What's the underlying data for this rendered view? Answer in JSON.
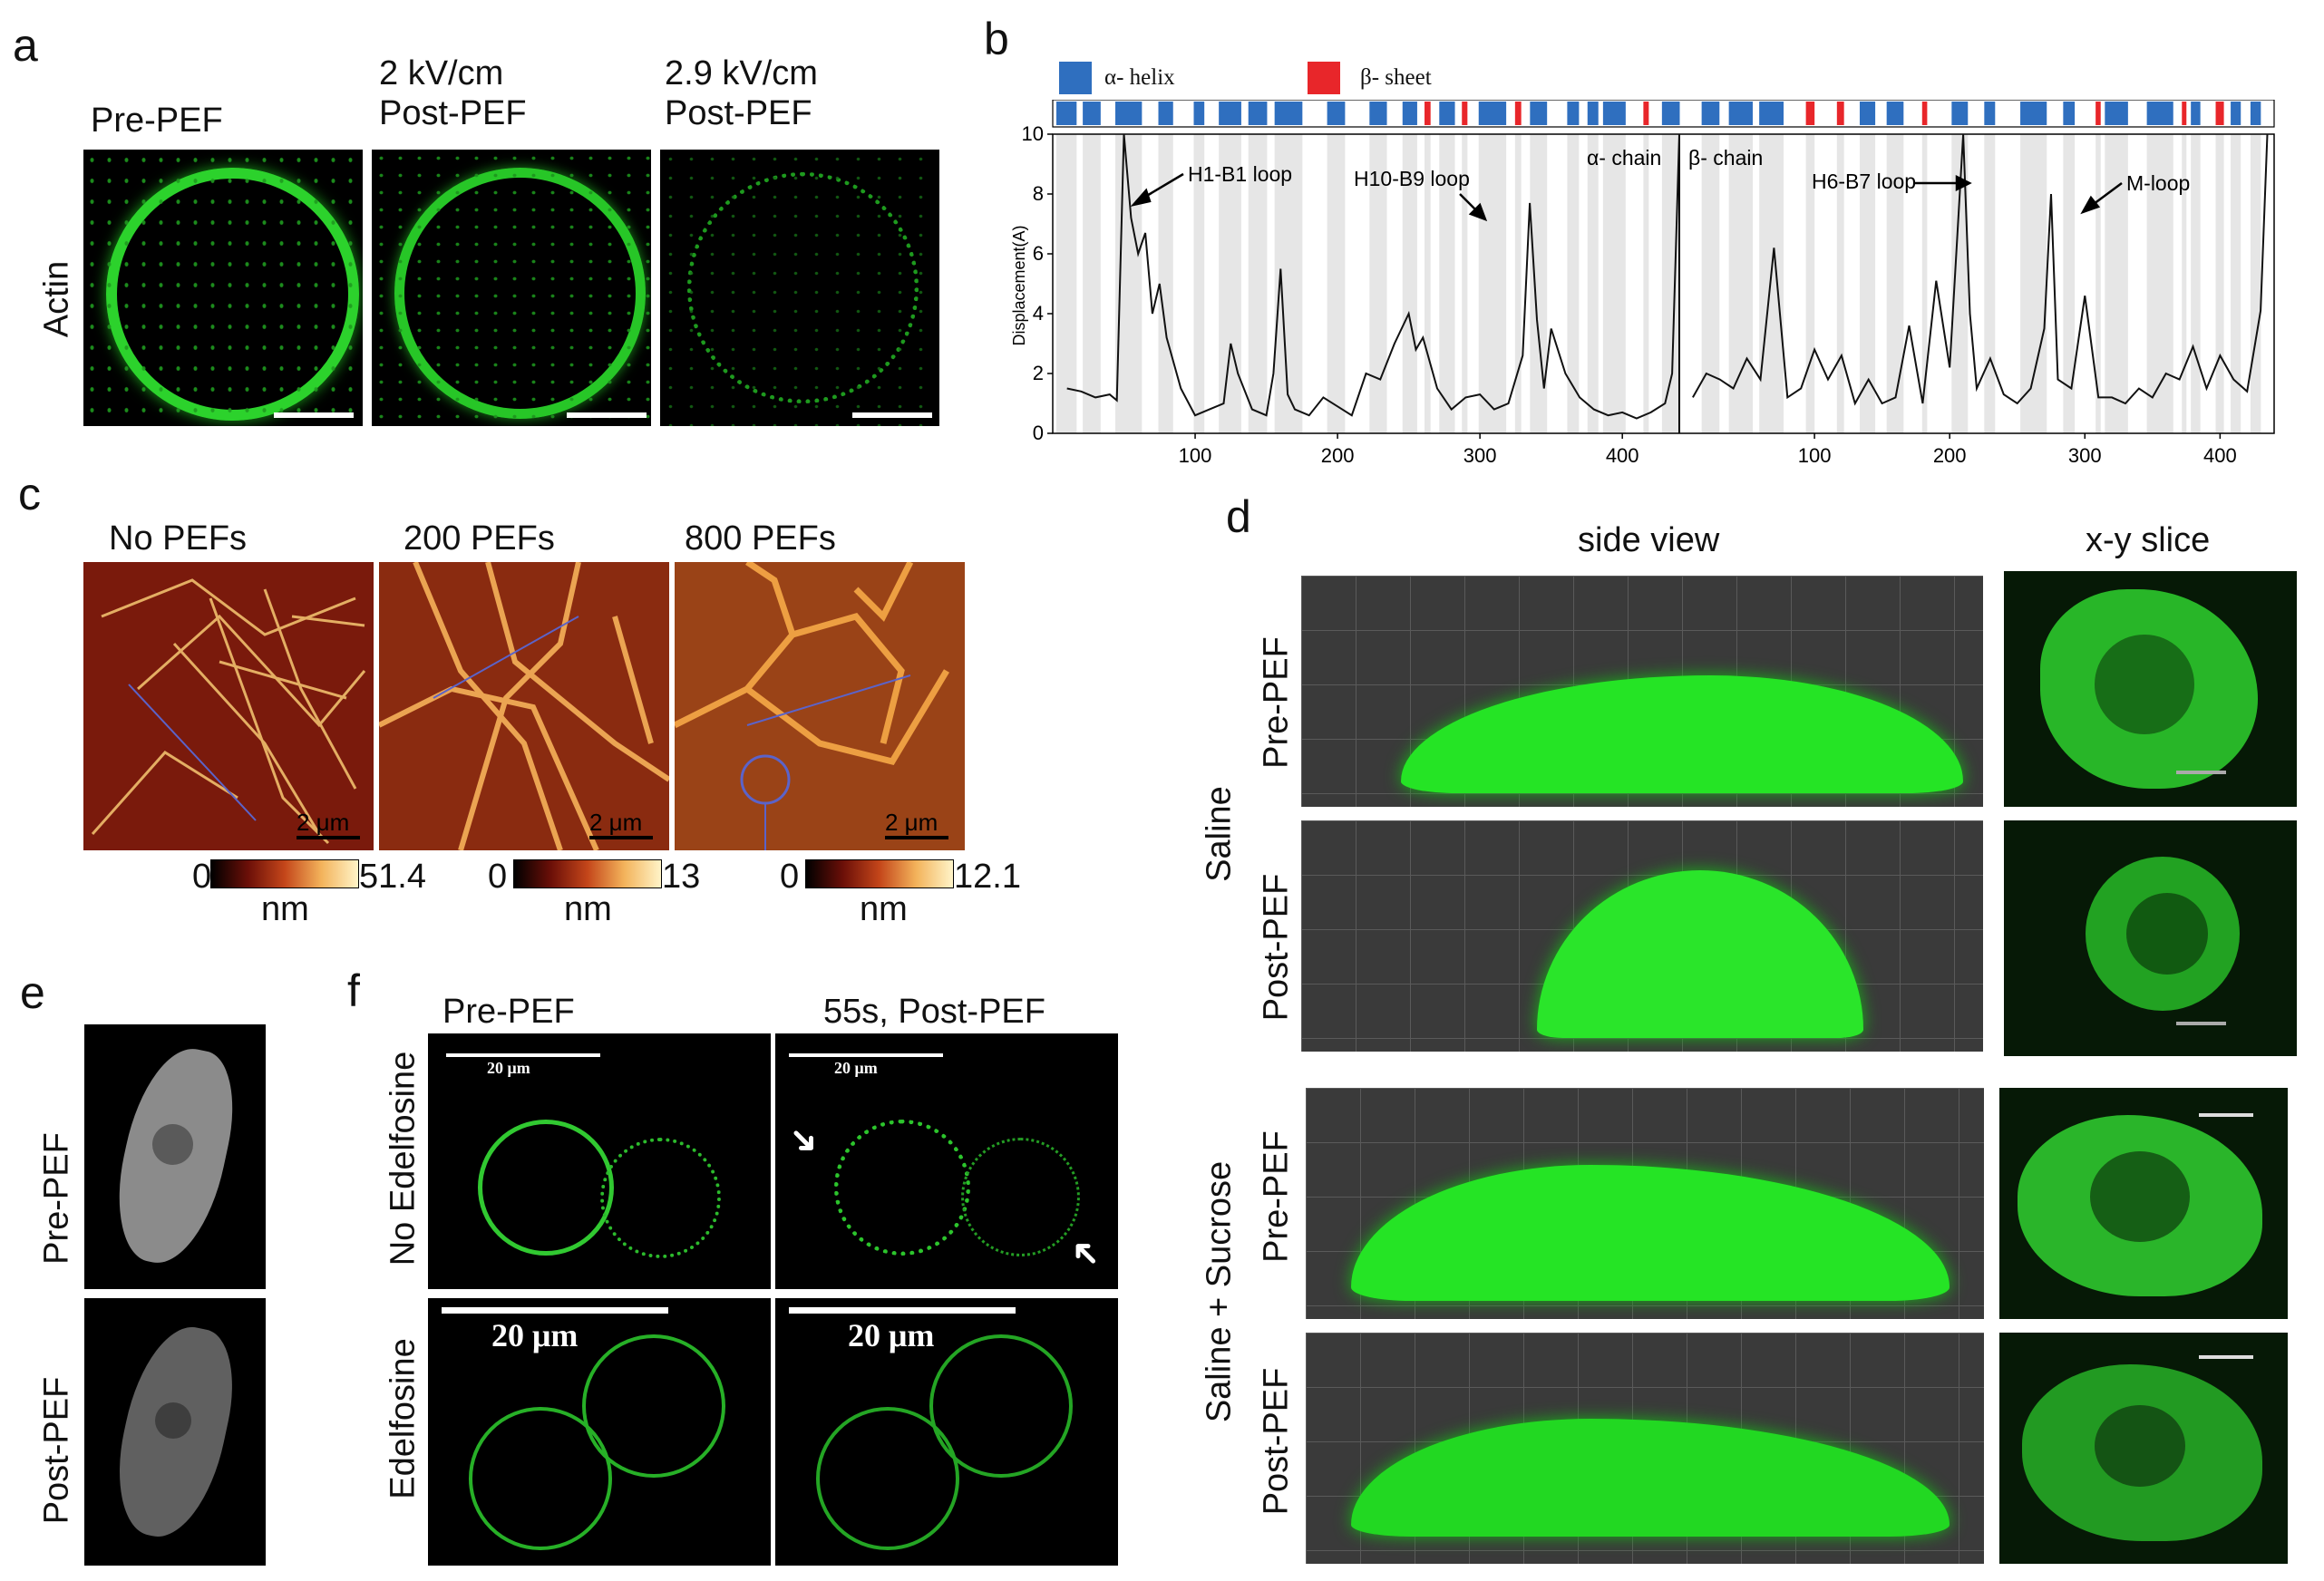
{
  "panels": {
    "a": {
      "label": "a",
      "row_label": "Actin",
      "headers": [
        "Pre-PEF",
        "2 kV/cm\nPost-PEF",
        "2.9 kV/cm\nPost-PEF"
      ]
    },
    "b": {
      "label": "b",
      "legend": [
        {
          "name": "α- helix",
          "color": "#2f6fbf"
        },
        {
          "name": "β- sheet",
          "color": "#e8262a"
        }
      ],
      "ylabel": "Displacement(A)",
      "ylim": [
        0,
        10
      ],
      "yticks": [
        "0",
        "2",
        "4",
        "6",
        "8",
        "10"
      ],
      "xticks": [
        "100",
        "200",
        "300",
        "400",
        "100",
        "200",
        "300",
        "400"
      ],
      "annotations": [
        "H1-B1 loop",
        "H10-B9 loop",
        "α- chain",
        "β- chain",
        "H6-B7 loop",
        "M-loop"
      ]
    },
    "c": {
      "label": "c",
      "headers": [
        "No PEFs",
        "200 PEFs",
        "800 PEFs"
      ],
      "scalebar": "2 μm",
      "colorbars": [
        {
          "min": "0",
          "max": "51.4",
          "unit": "nm"
        },
        {
          "min": "0",
          "max": "13",
          "unit": "nm"
        },
        {
          "min": "0",
          "max": "12.1",
          "unit": "nm"
        }
      ]
    },
    "d": {
      "label": "d",
      "col_headers": [
        "side view",
        "x-y slice"
      ],
      "group_labels": [
        "Saline",
        "Saline + Sucrose"
      ],
      "row_labels": [
        "Pre-PEF",
        "Post-PEF",
        "Pre-PEF",
        "Post-PEF"
      ]
    },
    "e": {
      "label": "e",
      "row_labels": [
        "Pre-PEF",
        "Post-PEF"
      ]
    },
    "f": {
      "label": "f",
      "col_headers": [
        "Pre-PEF",
        "55s, Post-PEF"
      ],
      "row_labels": [
        "No Edelfosine",
        "Edelfosine"
      ],
      "scale_small": "20 μm",
      "scale_large": "20 μm"
    }
  },
  "chart_data": {
    "type": "line",
    "title": "",
    "xlabel": "",
    "ylabel": "Displacement(A)",
    "ylim": [
      0,
      10
    ],
    "series": [
      {
        "x": [
          10,
          20,
          30,
          40,
          45,
          50,
          55,
          60,
          65,
          70,
          75,
          80,
          90,
          100,
          110,
          120,
          125,
          130,
          140,
          150,
          155,
          160,
          165,
          170,
          180,
          190,
          200,
          210,
          220,
          230,
          240,
          250,
          255,
          260,
          270,
          280,
          290,
          300,
          310,
          320,
          330,
          335,
          340,
          345,
          350,
          360,
          370,
          380,
          390,
          400,
          410,
          420,
          430,
          435,
          440
        ],
        "y": [
          1.5,
          1.4,
          1.2,
          1.3,
          1.1,
          10,
          7.2,
          6,
          6.7,
          4,
          5,
          3.2,
          1.5,
          0.6,
          0.8,
          1,
          3,
          2,
          0.8,
          0.6,
          2,
          5.5,
          1.3,
          0.8,
          0.6,
          1.2,
          0.9,
          0.6,
          2,
          1.8,
          3,
          4,
          2.8,
          3.2,
          1.5,
          0.8,
          1.2,
          1.3,
          0.8,
          1,
          2.6,
          7.7,
          3.8,
          1.5,
          3.5,
          2,
          1.2,
          0.8,
          0.6,
          0.7,
          0.5,
          0.7,
          1,
          2,
          10
        ]
      },
      {
        "x": [
          10,
          20,
          30,
          40,
          50,
          60,
          70,
          80,
          90,
          100,
          110,
          120,
          130,
          140,
          150,
          160,
          170,
          180,
          190,
          200,
          210,
          215,
          220,
          230,
          240,
          250,
          260,
          270,
          275,
          280,
          290,
          300,
          310,
          320,
          330,
          340,
          350,
          360,
          370,
          380,
          390,
          400,
          410,
          420,
          430,
          435
        ],
        "y": [
          1.2,
          2,
          1.8,
          1.5,
          2.5,
          1.8,
          6.2,
          1.2,
          1.5,
          2.8,
          1.8,
          2.6,
          1,
          1.8,
          1,
          1.2,
          3.6,
          1,
          5.1,
          2.2,
          10,
          4,
          1.5,
          2.5,
          1.3,
          1,
          1.5,
          3.5,
          8,
          1.8,
          1.5,
          4.6,
          1.2,
          1.2,
          1,
          1.5,
          1.2,
          2,
          1.8,
          2.9,
          1.5,
          2.6,
          1.8,
          1.4,
          4.1,
          10
        ]
      }
    ]
  }
}
